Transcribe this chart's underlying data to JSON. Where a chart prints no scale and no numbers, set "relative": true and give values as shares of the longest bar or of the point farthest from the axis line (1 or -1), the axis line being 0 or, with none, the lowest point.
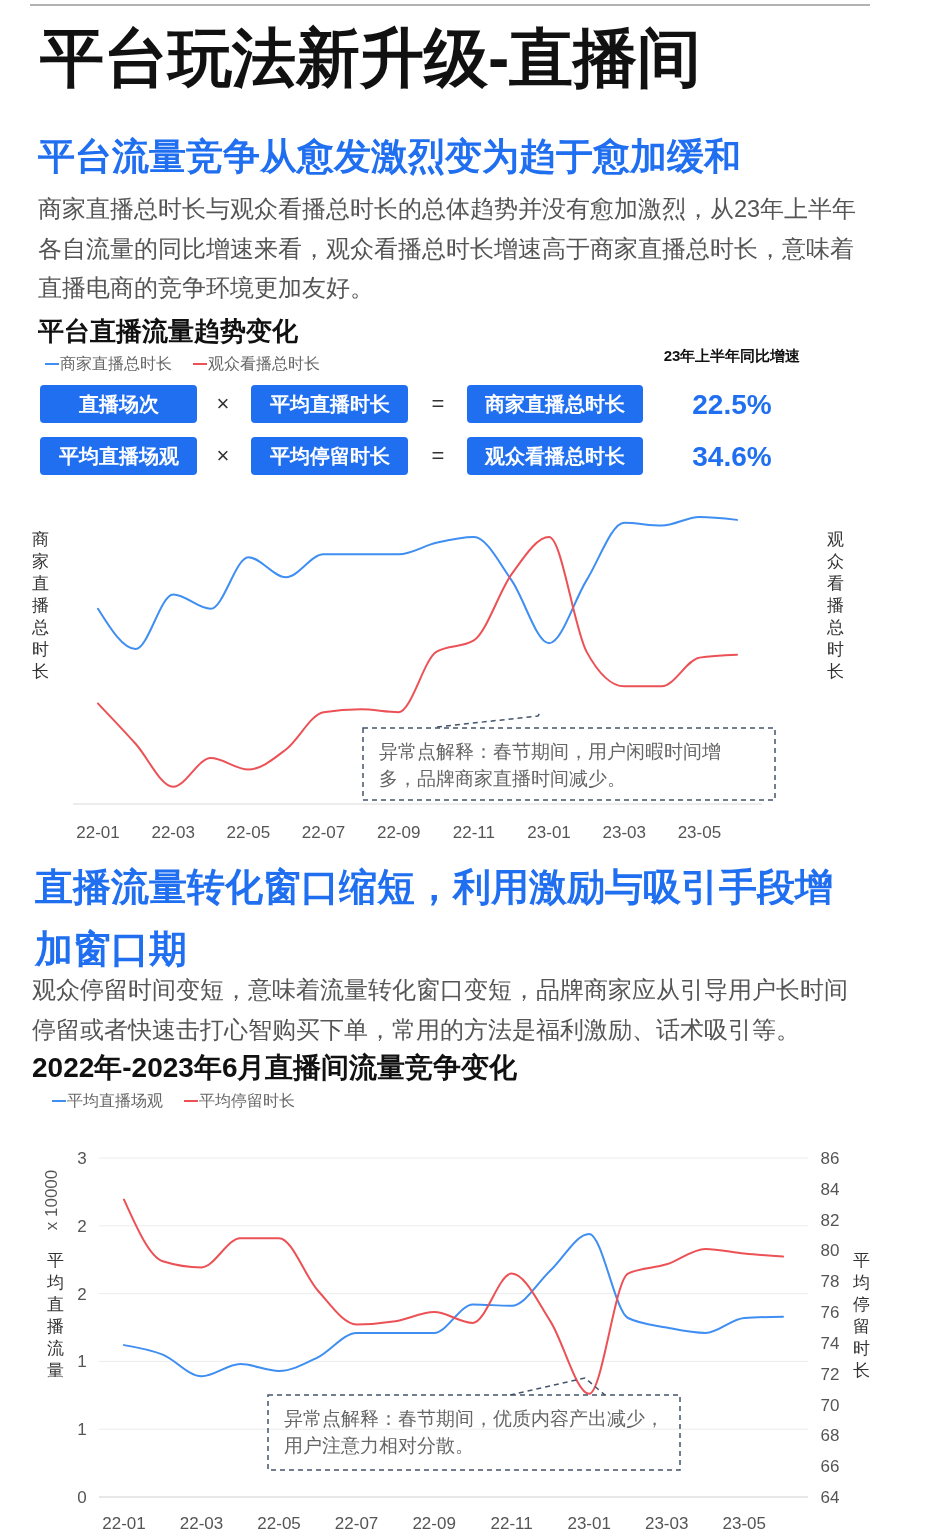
{
  "chart_data": [
    {
      "type": "other",
      "title": "平台玩法新升级-直播间",
      "subtitle": "平台流量竞争从愈发激烈变为趋于愈加缓和",
      "annotations": [
        "商家直播总时长与观众看播总时长的总体趋势并没有愈加激烈，从23年上半年各自流量的同比增速来看，观众看播总时长增速高于商家直播总时长，意味着直播电商的竞争环境更加友好。"
      ]
    },
    {
      "type": "line",
      "title": "平台直播流量趋势变化",
      "ylabel": "商家直播总时长",
      "y2label": "观众看播总时长",
      "relative": true,
      "legend": "top left",
      "categories": [
        "22-01",
        null,
        "22-03",
        null,
        "22-05",
        null,
        "22-07",
        null,
        "22-09",
        null,
        "22-11",
        null,
        "23-01",
        null,
        "23-03",
        null,
        "23-05",
        null
      ],
      "series": [
        {
          "name": "商家直播总时长",
          "color": "#3f8ef2",
          "values": [
            0.68,
            0.54,
            0.73,
            0.68,
            0.86,
            0.79,
            0.87,
            0.87,
            0.87,
            0.91,
            0.93,
            0.78,
            0.56,
            0.78,
            0.98,
            0.97,
            1,
            0.99
          ]
        },
        {
          "name": "观众看播总时长",
          "color": "#ec5156",
          "values": [
            0.35,
            0.21,
            0.06,
            0.16,
            0.12,
            0.19,
            0.32,
            0.33,
            0.32,
            0.53,
            0.57,
            0.8,
            0.93,
            0.53,
            0.41,
            0.41,
            0.51,
            0.52
          ]
        }
      ],
      "annotations": [
        "异常点解释：春节期间，用户闲暇时间增多，品牌商家直播时间减少。"
      ]
    },
    {
      "type": "other",
      "title": "23年上半年同比增速",
      "annotations": [
        "直播场次",
        "×",
        "平均直播时长",
        "=",
        "商家直播总时长",
        "22.5%",
        "平均直播场观",
        "×",
        "平均停留时长",
        "=",
        "观众看播总时长",
        "34.6%"
      ]
    },
    {
      "type": "other",
      "subtitle": "直播流量转化窗口缩短，利用激励与吸引手段增加窗口期",
      "annotations": [
        "观众停留时间变短，意味着流量转化窗口变短，品牌商家应从引导用户长时间停留或者快速击打心智购买下单，常用的方法是福利激励、话术吸引等。"
      ]
    },
    {
      "type": "line",
      "title": "2022年-2023年6月直播间流量竞争变化",
      "ylabel": "平均直播流量",
      "y2label": "平均停留时长",
      "legend": "top left",
      "grid": "y",
      "categories": [
        "22-01",
        null,
        "22-03",
        null,
        "22-05",
        null,
        "22-07",
        null,
        "22-09",
        null,
        "22-11",
        null,
        "23-01",
        null,
        "23-03",
        null,
        "23-05",
        null
      ],
      "ylim": [
        0,
        2.5
      ],
      "yticks": [
        0,
        {
          "value": 0.5,
          "label": "1"
        },
        1,
        {
          "value": 1.5,
          "label": "2"
        },
        2,
        {
          "value": 2.5,
          "label": "3"
        }
      ],
      "y2lim": [
        64,
        86
      ],
      "y2ticks": [
        64,
        66,
        68,
        70,
        72,
        74,
        76,
        78,
        80,
        82,
        84,
        86
      ],
      "series": [
        {
          "name": "平均直播场观",
          "color": "#3f8ef2",
          "values": [
            1.12,
            1.05,
            0.89,
            0.98,
            0.93,
            1.03,
            1.21,
            1.21,
            1.21,
            1.42,
            1.41,
            1.67,
            1.94,
            1.32,
            1.25,
            1.21,
            1.32,
            1.33
          ]
        },
        {
          "name": "平均停留时长",
          "color": "#ec5156",
          "axis": "y2",
          "values": [
            83.3,
            79.3,
            78.9,
            80.8,
            80.8,
            77.4,
            75.2,
            75.4,
            76.0,
            75.3,
            78.5,
            75.4,
            70.7,
            78.5,
            79.1,
            80.1,
            79.8,
            79.6
          ]
        }
      ],
      "annotations": [
        "x 10000",
        "异常点解释：春节期间，优质内容产出减少，用户注意力相对分散。"
      ]
    }
  ]
}
